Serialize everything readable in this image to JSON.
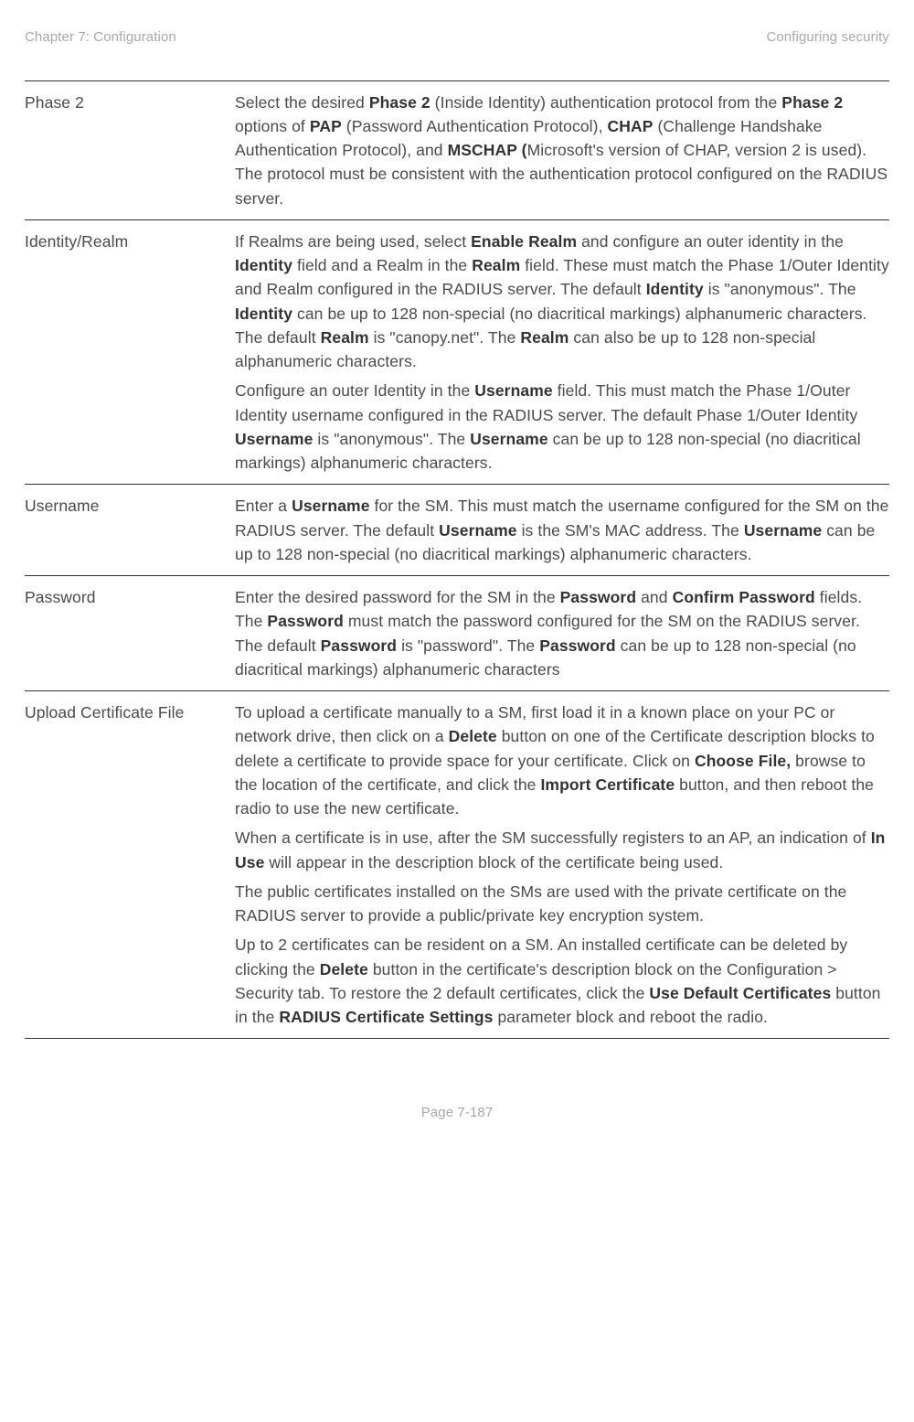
{
  "header": {
    "left": "Chapter 7:  Configuration",
    "right": "Configuring security"
  },
  "footer": "Page 7-187",
  "rows": [
    {
      "label": "Phase 2",
      "paras": [
        [
          {
            "t": "Select the desired "
          },
          {
            "t": "Phase 2",
            "b": 1
          },
          {
            "t": " (Inside Identity) authentication protocol from the "
          },
          {
            "t": "Phase 2",
            "b": 1
          },
          {
            "t": " options of "
          },
          {
            "t": "PAP",
            "b": 1
          },
          {
            "t": " (Password Authentication Protocol), "
          },
          {
            "t": "CHAP",
            "b": 1
          },
          {
            "t": " (Challenge Handshake Authentication Protocol), and "
          },
          {
            "t": "MSCHAP (",
            "b": 1
          },
          {
            "t": "Microsoft's version of CHAP, version 2 is used). The protocol must be consistent with the authentication protocol configured on the RADIUS server."
          }
        ]
      ]
    },
    {
      "label": "Identity/Realm",
      "paras": [
        [
          {
            "t": "If Realms are being used, select "
          },
          {
            "t": "Enable Realm",
            "b": 1
          },
          {
            "t": " and configure an outer identity in the "
          },
          {
            "t": "Identity",
            "b": 1
          },
          {
            "t": " field and a Realm in the "
          },
          {
            "t": "Realm",
            "b": 1
          },
          {
            "t": " field. These must match the Phase 1/Outer Identity and Realm configured in the RADIUS server. The default "
          },
          {
            "t": "Identity",
            "b": 1
          },
          {
            "t": " is \"anonymous\". The "
          },
          {
            "t": "Identity",
            "b": 1
          },
          {
            "t": " can be up to 128 non-special (no diacritical markings) alphanumeric characters. The default "
          },
          {
            "t": "Realm",
            "b": 1
          },
          {
            "t": " is \"canopy.net\". The "
          },
          {
            "t": "Realm",
            "b": 1
          },
          {
            "t": " can also be up to 128 non-special alphanumeric characters."
          }
        ],
        [
          {
            "t": "Configure an outer Identity in the "
          },
          {
            "t": "Username",
            "b": 1
          },
          {
            "t": " field. This must match the Phase 1/Outer Identity username configured in the RADIUS server. The default Phase 1/Outer Identity "
          },
          {
            "t": "Username",
            "b": 1
          },
          {
            "t": " is \"anonymous\". The "
          },
          {
            "t": "Username",
            "b": 1
          },
          {
            "t": " can be up to 128 non-special (no diacritical markings) alphanumeric characters."
          }
        ]
      ]
    },
    {
      "label": "Username",
      "paras": [
        [
          {
            "t": "Enter a "
          },
          {
            "t": "Username",
            "b": 1
          },
          {
            "t": " for the SM. This must match the username configured for the SM on the RADIUS server. The default "
          },
          {
            "t": "Username",
            "b": 1
          },
          {
            "t": " is the SM's MAC address. The "
          },
          {
            "t": "Username",
            "b": 1
          },
          {
            "t": " can be up to 128 non-special (no diacritical markings) alphanumeric characters."
          }
        ]
      ]
    },
    {
      "label": "Password",
      "paras": [
        [
          {
            "t": "Enter the desired password for the SM in the "
          },
          {
            "t": "Password",
            "b": 1
          },
          {
            "t": " and "
          },
          {
            "t": "Confirm Password",
            "b": 1
          },
          {
            "t": " fields. The "
          },
          {
            "t": "Password",
            "b": 1
          },
          {
            "t": " must match the password configured for the SM on the RADIUS server. The default "
          },
          {
            "t": "Password",
            "b": 1
          },
          {
            "t": " is \"password\". The "
          },
          {
            "t": "Password",
            "b": 1
          },
          {
            "t": " can be up to 128 non-special (no diacritical markings) alphanumeric characters"
          }
        ]
      ]
    },
    {
      "label": "Upload Certificate File",
      "paras": [
        [
          {
            "t": "To upload a certificate manually to a SM, first load it in a known place on your PC or network drive, then click on a "
          },
          {
            "t": "Delete",
            "b": 1
          },
          {
            "t": " button on one of the Certificate description blocks to delete a certificate to provide space for your certificate. Click on "
          },
          {
            "t": "Choose File,",
            "b": 1
          },
          {
            "t": " browse to the location of the certificate, and click the "
          },
          {
            "t": "Import Certificate",
            "b": 1
          },
          {
            "t": " button, and then reboot the radio to use the new certificate."
          }
        ],
        [
          {
            "t": "When a certificate is in use, after the SM successfully registers to an AP, an indication of "
          },
          {
            "t": "In Use",
            "b": 1
          },
          {
            "t": " will appear in the description block of the certificate being used."
          }
        ],
        [
          {
            "t": "The public certificates installed on the SMs are used with the private certificate on the RADIUS server to provide a public/private key encryption system."
          }
        ],
        [
          {
            "t": "Up to 2 certificates can be resident on a SM. An installed certificate can be deleted by clicking the "
          },
          {
            "t": "Delete",
            "b": 1
          },
          {
            "t": " button in the certificate's description block on the Configuration > Security tab. To restore the 2 default certificates, click the "
          },
          {
            "t": "Use Default Certificates",
            "b": 1
          },
          {
            "t": " button in the "
          },
          {
            "t": "RADIUS Certificate Settings",
            "b": 1
          },
          {
            "t": " parameter block and reboot the radio."
          }
        ]
      ]
    }
  ]
}
